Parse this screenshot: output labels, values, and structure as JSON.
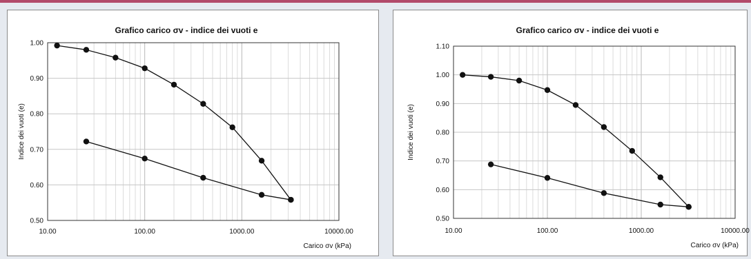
{
  "chart_data": [
    {
      "type": "line",
      "title": "Grafico carico σv - indice dei vuoti e",
      "xlabel": "Carico  σv  (kPa)",
      "ylabel": "Indice dei vuoti (e)",
      "x_scale": "log",
      "xlim": [
        10,
        10000
      ],
      "ylim": [
        0.5,
        1.0
      ],
      "x_ticks": [
        "10.00",
        "100.00",
        "1000.00",
        "10000.00"
      ],
      "y_ticks": [
        "0.50",
        "0.60",
        "0.70",
        "0.80",
        "0.90",
        "1.00"
      ],
      "grid": true,
      "series": [
        {
          "x": [
            12.5,
            25,
            50,
            100,
            200,
            400,
            800,
            1600,
            3200
          ],
          "values": [
            0.992,
            0.98,
            0.958,
            0.928,
            0.882,
            0.828,
            0.762,
            0.668,
            0.558
          ]
        },
        {
          "x": [
            25,
            100,
            400,
            1600,
            3200
          ],
          "values": [
            0.722,
            0.674,
            0.62,
            0.572,
            0.558
          ]
        }
      ]
    },
    {
      "type": "line",
      "title": "Grafico carico σv - indice dei vuoti e",
      "xlabel": "Carico  σv  (kPa)",
      "ylabel": "Indice dei vuoti (e)",
      "x_scale": "log",
      "xlim": [
        10,
        10000
      ],
      "ylim": [
        0.5,
        1.1
      ],
      "x_ticks": [
        "10.00",
        "100.00",
        "1000.00",
        "10000.00"
      ],
      "y_ticks": [
        "0.50",
        "0.60",
        "0.70",
        "0.80",
        "0.90",
        "1.00",
        "1.10"
      ],
      "grid": true,
      "series": [
        {
          "x": [
            12.5,
            25,
            50,
            100,
            200,
            400,
            800,
            1600,
            3200
          ],
          "values": [
            1.0,
            0.993,
            0.98,
            0.947,
            0.895,
            0.818,
            0.735,
            0.643,
            0.54
          ]
        },
        {
          "x": [
            25,
            100,
            400,
            1600,
            3200
          ],
          "values": [
            0.688,
            0.641,
            0.588,
            0.548,
            0.54
          ]
        }
      ]
    }
  ]
}
